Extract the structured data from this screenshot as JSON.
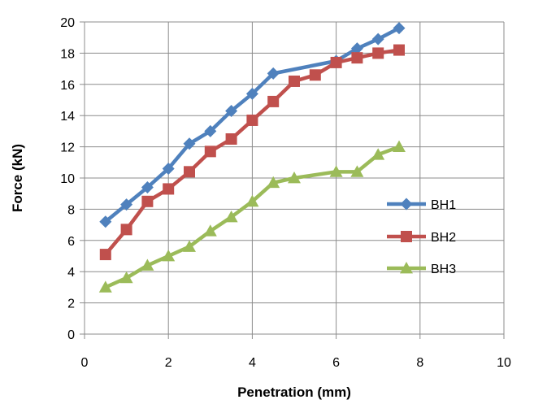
{
  "chart_data": {
    "type": "line",
    "title": "",
    "xlabel": "Penetration (mm)",
    "ylabel": "Force (kN)",
    "xlim": [
      0,
      10
    ],
    "ylim": [
      0,
      20
    ],
    "xticks": [
      "0",
      "2",
      "4",
      "6",
      "8",
      "10"
    ],
    "yticks": [
      "0",
      "2",
      "4",
      "6",
      "8",
      "10",
      "12",
      "14",
      "16",
      "18",
      "20"
    ],
    "grid": true,
    "legend_position": "right",
    "series": [
      {
        "name": "BH1",
        "color": "#4F81BD",
        "marker": "diamond",
        "x": [
          0.5,
          1,
          1.5,
          2,
          2.5,
          3,
          3.5,
          4,
          4.5,
          6,
          6.5,
          7,
          7.5
        ],
        "y": [
          7.2,
          8.3,
          9.4,
          10.6,
          12.2,
          13.0,
          14.3,
          15.4,
          16.7,
          17.5,
          18.3,
          18.9,
          19.6
        ]
      },
      {
        "name": "BH2",
        "color": "#C0504D",
        "marker": "square",
        "x": [
          0.5,
          1,
          1.5,
          2,
          2.5,
          3,
          3.5,
          4,
          4.5,
          5,
          5.5,
          6,
          6.5,
          7,
          7.5
        ],
        "y": [
          5.1,
          6.7,
          8.5,
          9.3,
          10.4,
          11.7,
          12.5,
          13.7,
          14.9,
          16.2,
          16.6,
          17.4,
          17.7,
          18.0,
          18.2
        ]
      },
      {
        "name": "BH3",
        "color": "#9BBB59",
        "marker": "triangle",
        "x": [
          0.5,
          1,
          1.5,
          2,
          2.5,
          3,
          3.5,
          4,
          4.5,
          5,
          6,
          6.5,
          7,
          7.5
        ],
        "y": [
          3.0,
          3.6,
          4.4,
          5.0,
          5.6,
          6.6,
          7.5,
          8.5,
          9.7,
          10.0,
          10.4,
          10.4,
          11.5,
          12.0
        ]
      }
    ]
  }
}
